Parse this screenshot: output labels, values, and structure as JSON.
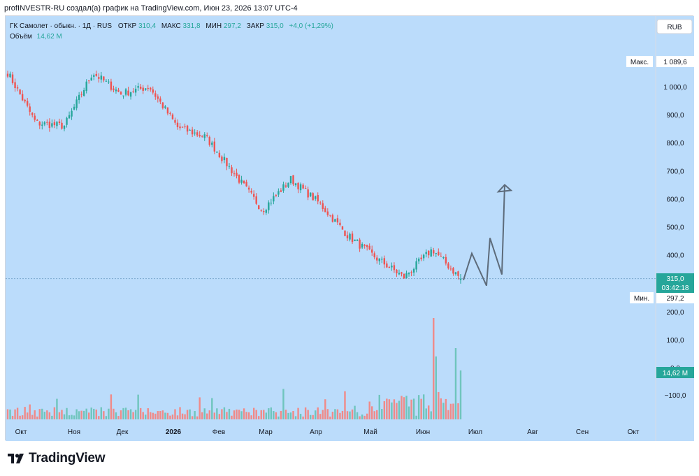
{
  "header": {
    "text": "profINVESTR-RU создал(а) график на TradingView.com, Июн 23, 2026 13:07 UTC-4"
  },
  "legend": {
    "symbol": "ГК Самолет · обыкн. · 1Д · RUS",
    "open_label": "ОТКР",
    "open_value": "310,4",
    "high_label": "МАКС",
    "high_value": "331,8",
    "low_label": "МИН",
    "low_value": "297,2",
    "close_label": "ЗАКР",
    "close_value": "315,0",
    "change": "+4,0 (+1,29%)",
    "volume_label": "Объём",
    "volume_value": "14,62 M"
  },
  "currency_button": "RUB",
  "price_scale": {
    "max_label": "Макс.",
    "max_value": "1 089,6",
    "min_label": "Мин.",
    "min_value": "297,2",
    "last_price": "315,0",
    "countdown": "03:42:18",
    "volume_tag": "14,62 M",
    "ticks": [
      "1 000,0",
      "900,0",
      "800,0",
      "700,0",
      "600,0",
      "500,0",
      "400,0"
    ],
    "volume_ticks": [
      "200,0",
      "100,0",
      "0,0",
      "−100,0"
    ]
  },
  "colors": {
    "background": "#bbdcfb",
    "up": "#26a69a",
    "down": "#ef5350",
    "up_volume": "#6fc5bd",
    "down_volume": "#f08a88",
    "last_price_tag": "#26a69a",
    "projection": "#5d6b7a"
  },
  "footer": {
    "brand": "TradingView"
  },
  "chart_data": {
    "type": "candlestick",
    "title": "ГК Самолет · обыкн. · 1Д · RUS",
    "x_tick_labels": [
      "Окт",
      "Ноя",
      "Дек",
      "2026",
      "Фев",
      "Мар",
      "Апр",
      "Май",
      "Июн",
      "Июл",
      "Авг",
      "Сен",
      "Окт"
    ],
    "price_range": [
      260,
      1100
    ],
    "x": [
      "Окт",
      "Ноя",
      "Дек",
      "2026",
      "Фев",
      "Мар",
      "Апр",
      "Май",
      "Июн"
    ],
    "close_path": [
      1050,
      870,
      860,
      1050,
      975,
      1000,
      855,
      820,
      690,
      560,
      670,
      585,
      470,
      390,
      320,
      420,
      315
    ],
    "last": {
      "open": 310.4,
      "high": 331.8,
      "low": 297.2,
      "close": 315.0,
      "change": 4.0,
      "change_pct": 1.29
    },
    "period_high": 1089.6,
    "period_low": 297.2,
    "volume_last_millions": 14.62,
    "projection_path": [
      {
        "x": "Июн",
        "y": 310
      },
      {
        "x": "Июн",
        "y": 405
      },
      {
        "x": "Июн",
        "y": 290
      },
      {
        "x": "Июл",
        "y": 460
      },
      {
        "x": "Июл",
        "y": 330
      },
      {
        "x": "Июл",
        "y": 650
      }
    ]
  }
}
